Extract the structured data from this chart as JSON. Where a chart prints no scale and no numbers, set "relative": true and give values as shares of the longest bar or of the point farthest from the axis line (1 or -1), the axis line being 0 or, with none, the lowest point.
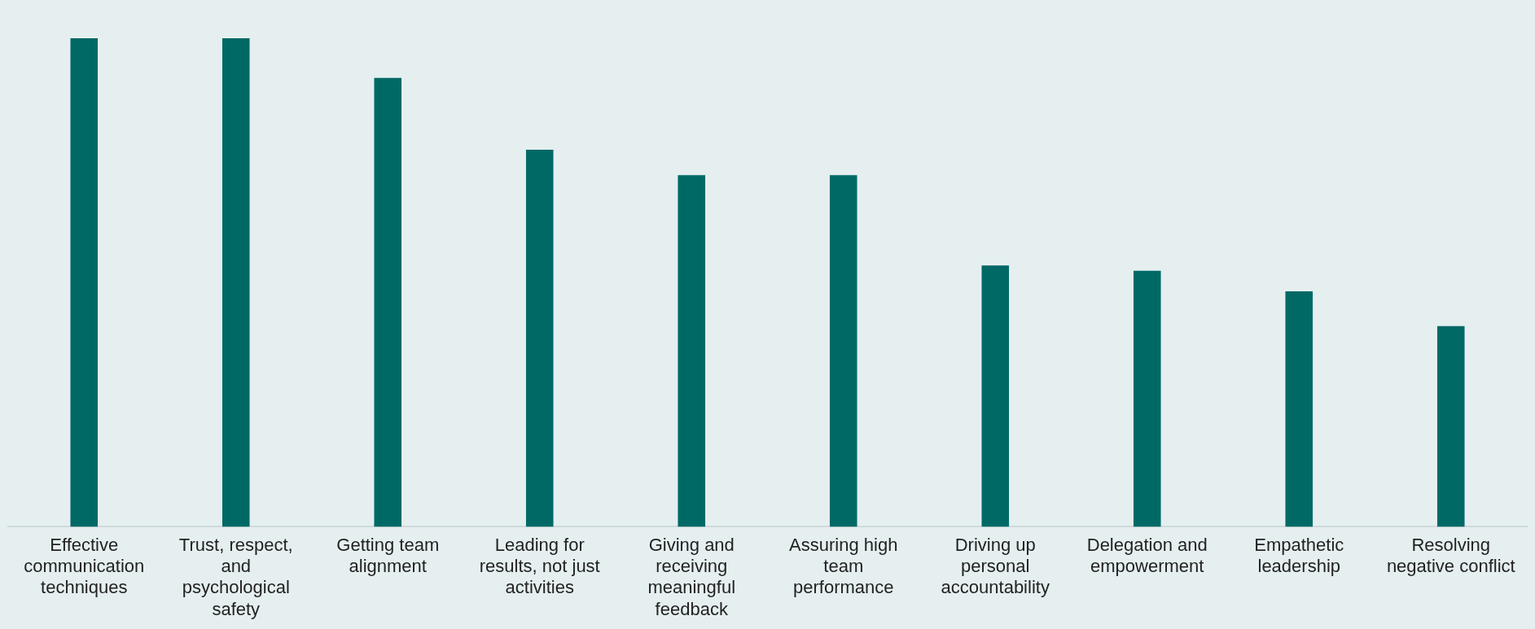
{
  "chart_data": {
    "type": "bar",
    "relative": true,
    "color": "#006966",
    "categories": [
      "Effective communication techniques",
      "Trust, respect, and psychological safety",
      "Getting team alignment",
      "Leading for results, not just activities",
      "Giving and receiving meaningful feedback",
      "Assuring high team performance",
      "Driving up personal accountability",
      "Delegation and empowerment",
      "Empathetic leadership",
      "Resolving negative conflict"
    ],
    "values": [
      1,
      1,
      0.919,
      0.772,
      0.72,
      0.72,
      0.535,
      0.524,
      0.482,
      0.411
    ]
  }
}
